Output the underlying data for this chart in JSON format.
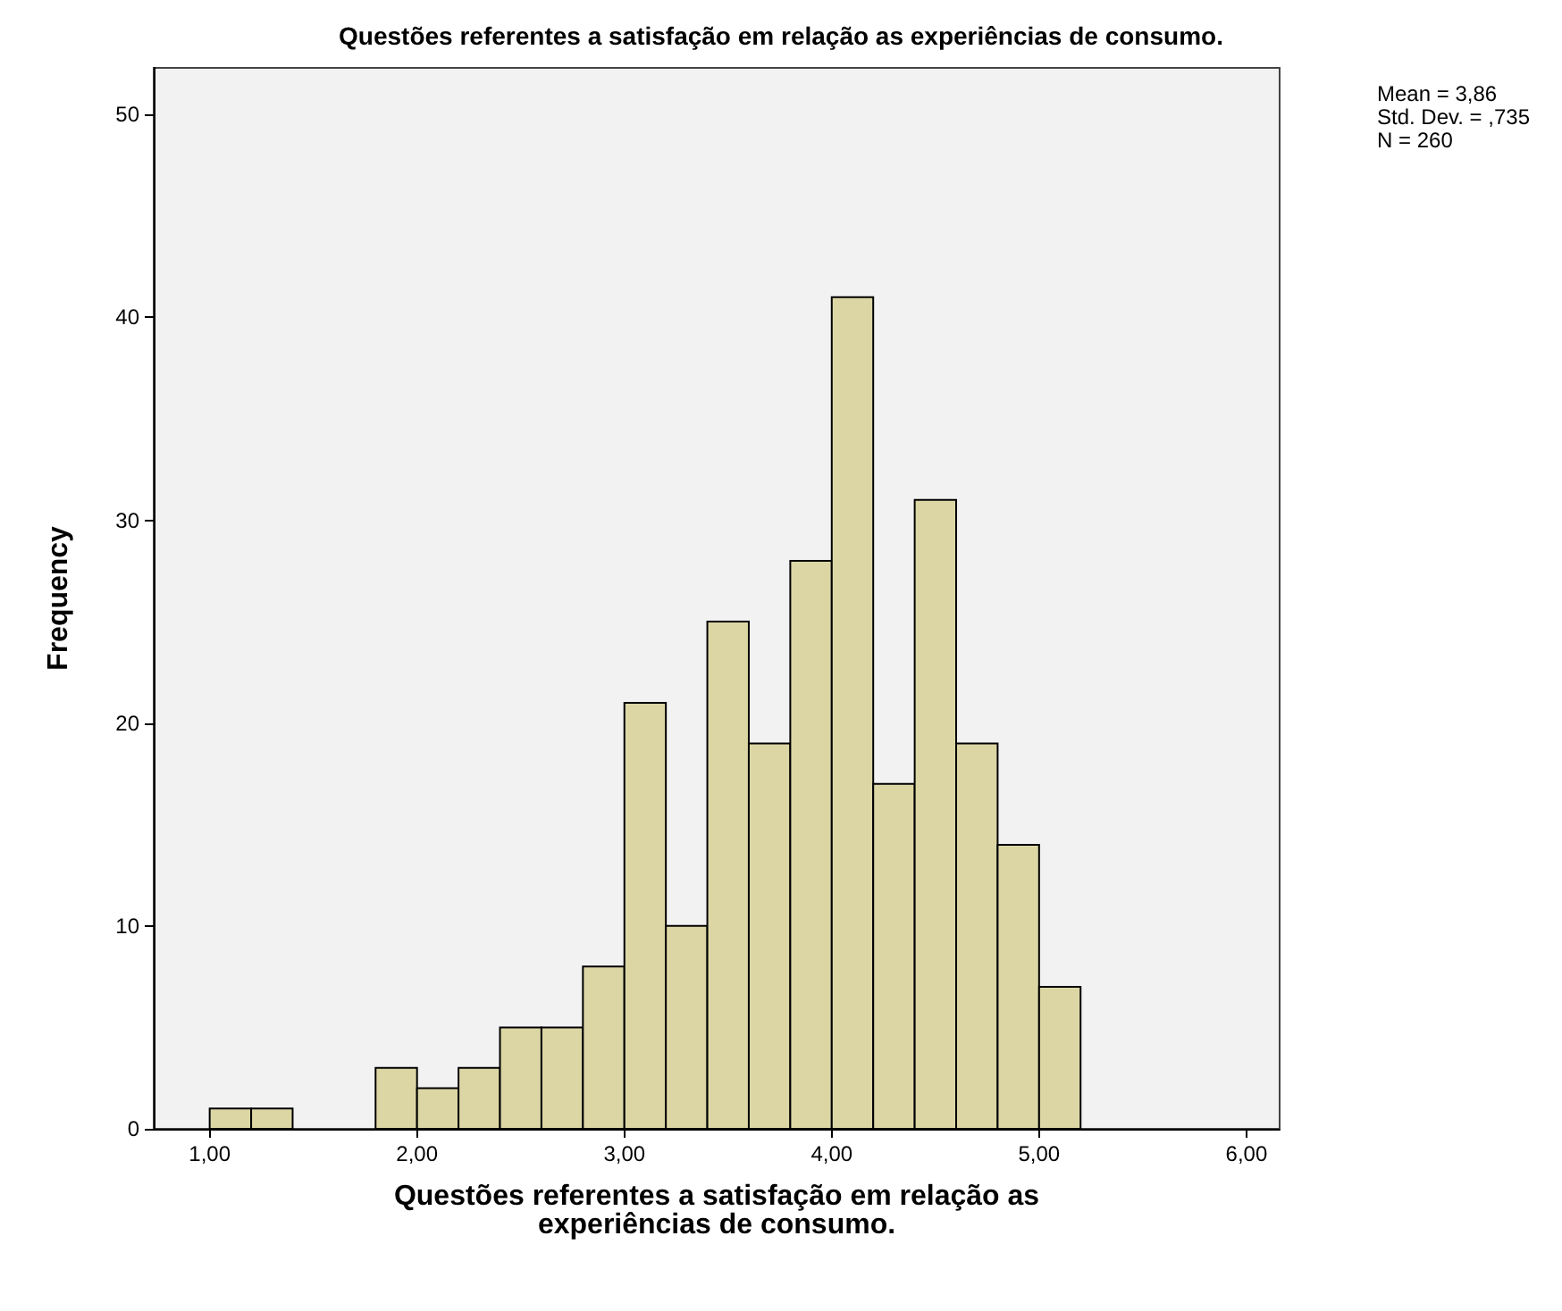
{
  "chart_data": {
    "type": "histogram",
    "title": "Questões referentes a satisfação em relação as experiências de consumo.",
    "xlabel": "Questões referentes a satisfação em relação as\nexperiências de consumo.",
    "ylabel": "Frequency",
    "bins": [
      1.0,
      1.2,
      1.4,
      1.6,
      1.8,
      2.0,
      2.2,
      2.4,
      2.6,
      2.8,
      3.0,
      3.2,
      3.4,
      3.6,
      3.8,
      4.0,
      4.2,
      4.4,
      4.6,
      4.8,
      5.0,
      5.2
    ],
    "values": [
      1,
      1,
      0,
      0,
      3,
      2,
      3,
      5,
      5,
      8,
      21,
      10,
      25,
      19,
      28,
      41,
      17,
      31,
      19,
      14,
      7
    ],
    "color": "#dcd6a5",
    "xlim": [
      0.73,
      6.16
    ],
    "xticks": [
      {
        "value": 1,
        "label": "1,00"
      },
      {
        "value": 2,
        "label": "2,00"
      },
      {
        "value": 3,
        "label": "3,00"
      },
      {
        "value": 4,
        "label": "4,00"
      },
      {
        "value": 5,
        "label": "5,00"
      },
      {
        "value": 6,
        "label": "6,00"
      }
    ],
    "ylim": [
      0,
      52.3
    ],
    "yticks": [
      0,
      10,
      20,
      30,
      40,
      50
    ],
    "grid": false,
    "annotations": [
      "Mean = 3,86",
      "Std. Dev. = ,735",
      "N = 260"
    ]
  }
}
